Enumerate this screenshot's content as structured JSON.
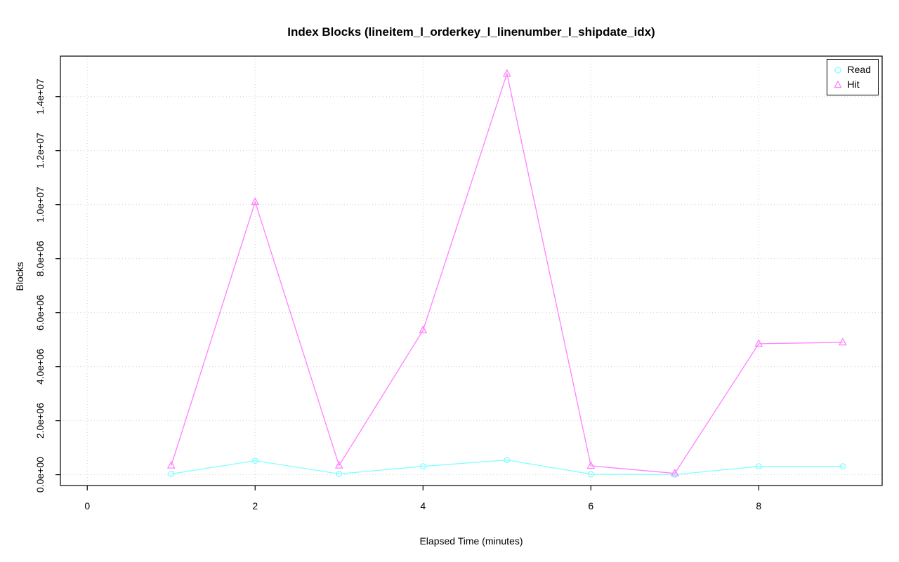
{
  "chart_data": {
    "type": "line",
    "title": "Index Blocks (lineitem_l_orderkey_l_linenumber_l_shipdate_idx)",
    "xlabel": "Elapsed Time (minutes)",
    "ylabel": "Blocks",
    "x": [
      1,
      2,
      3,
      4,
      5,
      6,
      7,
      8,
      9
    ],
    "series": [
      {
        "name": "Read",
        "color": "#80FFFF",
        "marker": "circle",
        "values": [
          30000,
          520000,
          30000,
          310000,
          545000,
          20000,
          5000,
          310000,
          310000
        ]
      },
      {
        "name": "Hit",
        "color": "#FF80FF",
        "marker": "triangle",
        "values": [
          340000,
          10100000,
          340000,
          5350000,
          14850000,
          330000,
          50000,
          4850000,
          4900000
        ]
      }
    ],
    "xlim": [
      -0.32,
      9.47
    ],
    "ylim": [
      -400000,
      15500000
    ],
    "xticks": [
      0,
      2,
      4,
      6,
      8
    ],
    "xtick_labels": [
      "0",
      "2",
      "4",
      "6",
      "8"
    ],
    "yticks": [
      0,
      2000000,
      4000000,
      6000000,
      8000000,
      10000000,
      12000000,
      14000000
    ],
    "ytick_labels": [
      "0.0e+00",
      "2.0e+06",
      "4.0e+06",
      "6.0e+06",
      "8.0e+06",
      "1.0e+07",
      "1.2e+07",
      "1.4e+07"
    ],
    "grid": true,
    "grid_color": "#d3d3d3",
    "legend": {
      "position": "top-right",
      "entries": [
        "Read",
        "Hit"
      ]
    }
  }
}
